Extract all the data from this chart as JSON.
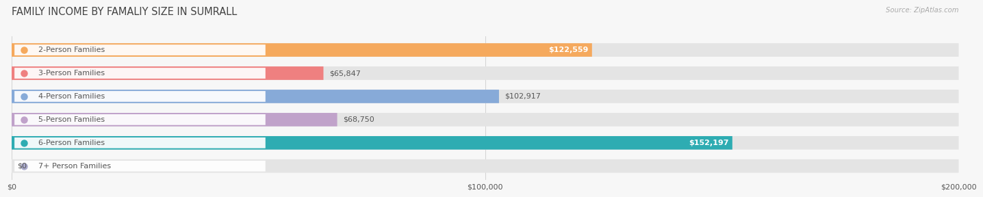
{
  "title": "FAMILY INCOME BY FAMALIY SIZE IN SUMRALL",
  "source": "Source: ZipAtlas.com",
  "categories": [
    "2-Person Families",
    "3-Person Families",
    "4-Person Families",
    "5-Person Families",
    "6-Person Families",
    "7+ Person Families"
  ],
  "values": [
    122559,
    65847,
    102917,
    68750,
    152197,
    0
  ],
  "bar_colors": [
    "#F5A95D",
    "#EF8080",
    "#87AAD8",
    "#C0A2CA",
    "#2EACB2",
    "#AAAACC"
  ],
  "value_labels": [
    "$122,559",
    "$65,847",
    "$102,917",
    "$68,750",
    "$152,197",
    "$0"
  ],
  "xlim": [
    0,
    200000
  ],
  "xticks": [
    0,
    100000,
    200000
  ],
  "xtick_labels": [
    "$0",
    "$100,000",
    "$200,000"
  ],
  "bg_color": "#f7f7f7",
  "bar_bg_color": "#e4e4e4",
  "title_color": "#444444",
  "label_color": "#555555",
  "source_color": "#aaaaaa",
  "title_fontsize": 10.5,
  "label_fontsize": 8.0,
  "value_fontsize": 8.0,
  "bar_height": 0.58
}
